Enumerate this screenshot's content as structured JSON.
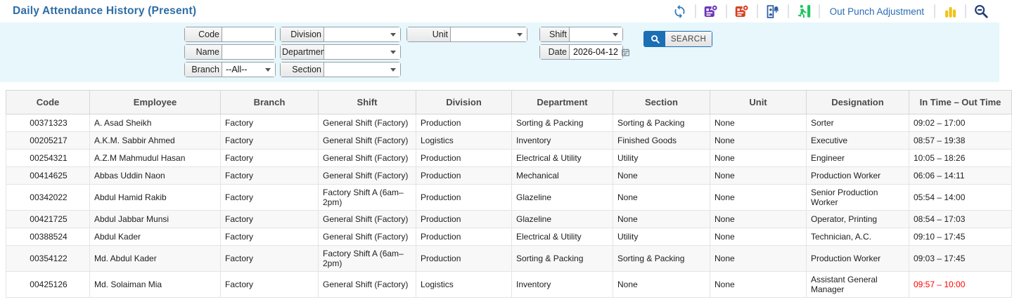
{
  "header": {
    "title": "Daily Attendance History (Present)",
    "toolbar": {
      "icons": [
        "refresh-icon",
        "sync-device-icon",
        "device-alert-icon",
        "punch-alarm-icon",
        "exit-icon",
        "bar-chart-icon",
        "zoom-out-icon"
      ],
      "out_punch_adjustment_label": "Out Punch Adjustment"
    }
  },
  "filters": {
    "code": {
      "label": "Code",
      "value": ""
    },
    "name": {
      "label": "Name",
      "value": ""
    },
    "branch": {
      "label": "Branch",
      "value": "--All--"
    },
    "division": {
      "label": "Division",
      "value": ""
    },
    "department": {
      "label": "Department",
      "value": ""
    },
    "section": {
      "label": "Section",
      "value": ""
    },
    "unit": {
      "label": "Unit",
      "value": ""
    },
    "shift": {
      "label": "Shift",
      "value": ""
    },
    "date": {
      "label": "Date",
      "value": "2026-04-12"
    },
    "search_label": "SEARCH"
  },
  "table": {
    "columns": [
      "Code",
      "Employee",
      "Branch",
      "Shift",
      "Division",
      "Department",
      "Section",
      "Unit",
      "Designation",
      "In Time – Out Time"
    ],
    "column_keys": [
      "code",
      "employee",
      "branch",
      "shift",
      "division",
      "department",
      "section",
      "unit",
      "designation",
      "time"
    ],
    "rows": [
      {
        "cells": [
          "00371323",
          "A. Asad Sheikh",
          "Factory",
          "General Shift (Factory)",
          "Production",
          "Sorting & Packing",
          "Sorting & Packing",
          "None",
          "Sorter",
          "09:02 – 17:00"
        ],
        "time_alert": false
      },
      {
        "cells": [
          "00205217",
          "A.K.M. Sabbir Ahmed",
          "Factory",
          "General Shift (Factory)",
          "Logistics",
          "Inventory",
          "Finished Goods",
          "None",
          "Executive",
          "08:57 – 19:38"
        ],
        "time_alert": false
      },
      {
        "cells": [
          "00254321",
          "A.Z.M Mahmudul Hasan",
          "Factory",
          "General Shift (Factory)",
          "Production",
          "Electrical & Utility",
          "Utility",
          "None",
          "Engineer",
          "10:05 – 18:26"
        ],
        "time_alert": false
      },
      {
        "cells": [
          "00414625",
          "Abbas Uddin Naon",
          "Factory",
          "General Shift (Factory)",
          "Production",
          "Mechanical",
          "None",
          "None",
          "Production Worker",
          "06:06 – 14:11"
        ],
        "time_alert": false
      },
      {
        "cells": [
          "00342022",
          "Abdul Hamid Rakib",
          "Factory",
          "Factory Shift A (6am–2pm)",
          "Production",
          "Glazeline",
          "None",
          "None",
          "Senior Production Worker",
          "05:54 – 14:00"
        ],
        "time_alert": false
      },
      {
        "cells": [
          "00421725",
          "Abdul Jabbar Munsi",
          "Factory",
          "General Shift (Factory)",
          "Production",
          "Glazeline",
          "None",
          "None",
          "Operator, Printing",
          "08:54 – 17:03"
        ],
        "time_alert": false
      },
      {
        "cells": [
          "00388524",
          "Abdul Kader",
          "Factory",
          "General Shift (Factory)",
          "Production",
          "Electrical & Utility",
          "Utility",
          "None",
          "Technician, A.C.",
          "09:10 – 17:45"
        ],
        "time_alert": false
      },
      {
        "cells": [
          "00354122",
          "Md. Abdul Kader",
          "Factory",
          "Factory Shift A (6am–2pm)",
          "Production",
          "Sorting & Packing",
          "Sorting & Packing",
          "None",
          "Production Worker",
          "09:03 – 17:45"
        ],
        "time_alert": false
      },
      {
        "cells": [
          "00425126",
          "Md. Solaiman Mia",
          "Factory",
          "General Shift (Factory)",
          "Logistics",
          "Inventory",
          "None",
          "None",
          "Assistant General Manager",
          "09:57 – 10:00"
        ],
        "time_alert": true
      }
    ]
  },
  "colors": {
    "title_blue": "#2d6da5",
    "link_blue": "#2a6db5",
    "filter_panel_bg": "#e7f7fc",
    "search_button_blue": "#1a6fb5",
    "alert_red": "#ff0000",
    "icon_refresh_blue": "#2e79b9",
    "icon_purple": "#6a35b8",
    "icon_red": "#d8401f",
    "icon_alarm_blue": "#2e5fa3",
    "icon_green": "#1fc35f",
    "icon_yellow": "#efc31a",
    "icon_navy": "#203e75"
  }
}
